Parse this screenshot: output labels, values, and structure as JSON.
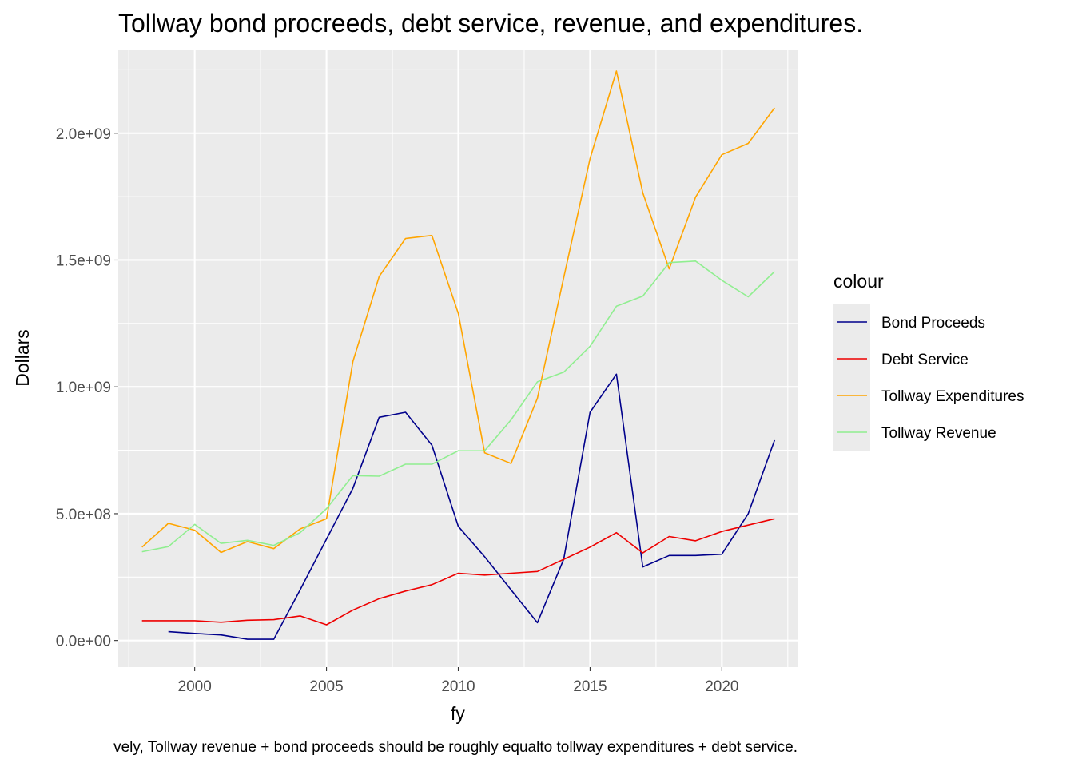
{
  "chart_data": {
    "type": "line",
    "title": "Tollway bond procreeds, debt service, revenue, and expenditures.",
    "xlabel": "fy",
    "ylabel": "Dollars",
    "caption": "vely, Tollway revenue + bond proceeds should be roughly equalto tollway expenditures + debt service.",
    "legend_title": "colour",
    "legend_position": "right",
    "xlim": [
      1997.1,
      2022.9
    ],
    "ylim": [
      -105000000,
      2330000000
    ],
    "x_ticks": [
      2000,
      2005,
      2010,
      2015,
      2020
    ],
    "x_tick_labels": [
      "2000",
      "2005",
      "2010",
      "2015",
      "2020"
    ],
    "y_ticks": [
      0,
      500000000,
      1000000000,
      1500000000,
      2000000000
    ],
    "y_tick_labels": [
      "0.0e+00",
      "5.0e+08",
      "1.0e+09",
      "1.5e+09",
      "2.0e+09"
    ],
    "grid": true,
    "background": "#ebebeb",
    "series": [
      {
        "name": "Bond Proceeds",
        "color": "#00008b",
        "x": [
          1999,
          2000,
          2001,
          2002,
          2003,
          2004,
          2005,
          2006,
          2007,
          2008,
          2009,
          2010,
          2011,
          2012,
          2013,
          2014,
          2015,
          2016,
          2017,
          2018,
          2019,
          2020,
          2021,
          2022
        ],
        "values": [
          35000000,
          28000000,
          22000000,
          5000000,
          5000000,
          200000000,
          400000000,
          600000000,
          880000000,
          900000000,
          770000000,
          450000000,
          330000000,
          200000000,
          70000000,
          320000000,
          900000000,
          1050000000,
          290000000,
          335000000,
          335000000,
          340000000,
          500000000,
          790000000
        ]
      },
      {
        "name": "Debt Service",
        "color": "#ee0000",
        "x": [
          1998,
          1999,
          2000,
          2001,
          2002,
          2003,
          2004,
          2005,
          2006,
          2007,
          2008,
          2009,
          2010,
          2011,
          2012,
          2013,
          2014,
          2015,
          2016,
          2017,
          2018,
          2019,
          2020,
          2021,
          2022
        ],
        "values": [
          78000000,
          78000000,
          78000000,
          72000000,
          80000000,
          82000000,
          97000000,
          62000000,
          120000000,
          165000000,
          195000000,
          220000000,
          265000000,
          258000000,
          265000000,
          272000000,
          320000000,
          368000000,
          425000000,
          345000000,
          410000000,
          393000000,
          430000000,
          455000000,
          480000000
        ]
      },
      {
        "name": "Tollway Expenditures",
        "color": "#ffa500",
        "x": [
          1998,
          1999,
          2000,
          2001,
          2002,
          2003,
          2004,
          2005,
          2006,
          2007,
          2008,
          2009,
          2010,
          2011,
          2012,
          2013,
          2014,
          2015,
          2016,
          2017,
          2018,
          2019,
          2020,
          2021,
          2022
        ],
        "values": [
          368000000,
          462000000,
          435000000,
          347000000,
          390000000,
          362000000,
          440000000,
          480000000,
          1100000000,
          1435000000,
          1585000000,
          1597000000,
          1290000000,
          740000000,
          698000000,
          955000000,
          1430000000,
          1900000000,
          2245000000,
          1765000000,
          1465000000,
          1748000000,
          1915000000,
          1960000000,
          2100000000
        ]
      },
      {
        "name": "Tollway Revenue",
        "color": "#90ee90",
        "x": [
          1998,
          1999,
          2000,
          2001,
          2002,
          2003,
          2004,
          2005,
          2006,
          2007,
          2008,
          2009,
          2010,
          2011,
          2012,
          2013,
          2014,
          2015,
          2016,
          2017,
          2018,
          2019,
          2020,
          2021,
          2022
        ],
        "values": [
          350000000,
          370000000,
          458000000,
          383000000,
          395000000,
          375000000,
          425000000,
          520000000,
          650000000,
          648000000,
          695000000,
          695000000,
          748000000,
          748000000,
          870000000,
          1020000000,
          1058000000,
          1160000000,
          1318000000,
          1358000000,
          1490000000,
          1496000000,
          1420000000,
          1355000000,
          1455000000
        ]
      }
    ]
  }
}
